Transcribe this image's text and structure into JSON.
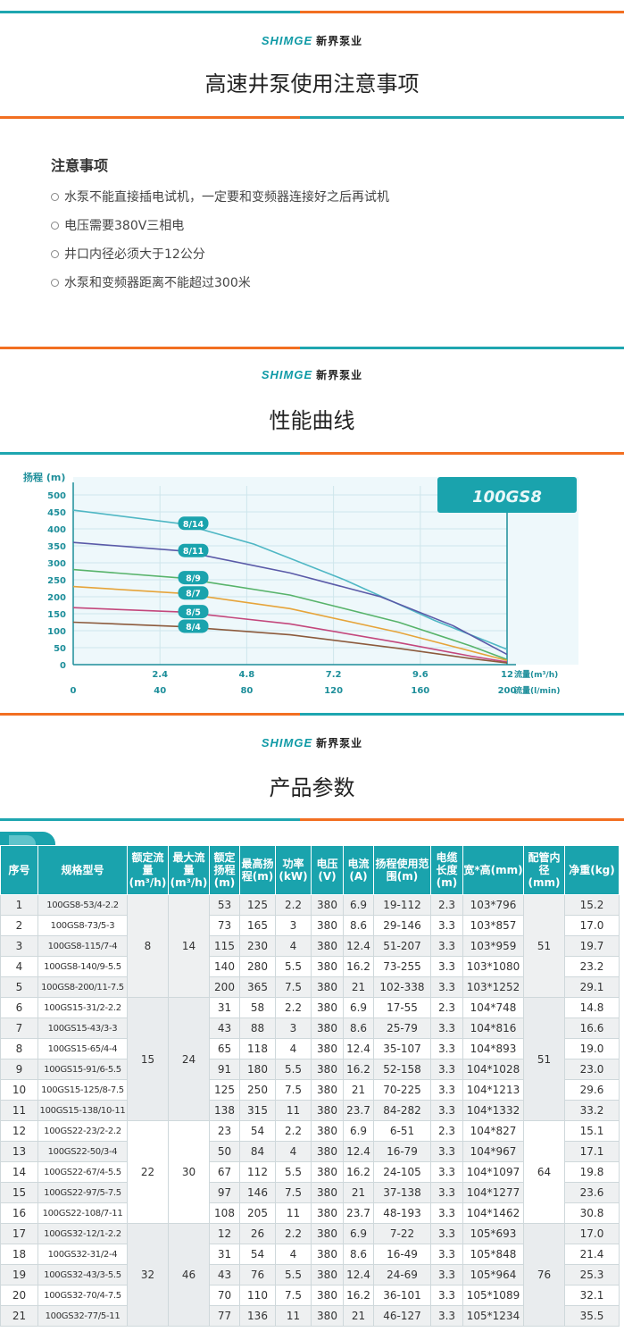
{
  "brand": {
    "en": "SHIMGE",
    "cn": "新界泵业"
  },
  "sections": [
    {
      "title": "高速井泵使用注意事项"
    },
    {
      "title": "性能曲线"
    },
    {
      "title": "产品参数"
    }
  ],
  "notes": {
    "heading": "注意事项",
    "items": [
      "水泵不能直接插电试机，一定要和变频器连接好之后再试机",
      "电压需要380V三相电",
      "井口内径必须大于12公分",
      "水泵和变频器距离不能超过300米"
    ]
  },
  "chart_data": {
    "type": "line",
    "title": "100GS8",
    "ylabel": "扬程 (m)",
    "xlabel": "流量(m³/h)",
    "xlabel2": "流量(l/min)",
    "ylim": [
      0,
      500
    ],
    "yticks": [
      0,
      50,
      100,
      150,
      200,
      250,
      300,
      350,
      400,
      450,
      500
    ],
    "xlim": [
      0,
      12
    ],
    "xticks": [
      "2.4",
      "4.8",
      "7.2",
      "9.6",
      "12"
    ],
    "xticks2": [
      "0",
      "40",
      "80",
      "120",
      "160",
      "200"
    ],
    "grid": true,
    "series": [
      {
        "name": "8/14",
        "color": "#4fb7c4",
        "points": [
          [
            0,
            455
          ],
          [
            3,
            415
          ],
          [
            5,
            355
          ],
          [
            7.5,
            250
          ],
          [
            10,
            130
          ],
          [
            12,
            45
          ]
        ]
      },
      {
        "name": "8/11",
        "color": "#5a5aa8",
        "points": [
          [
            0,
            360
          ],
          [
            3,
            335
          ],
          [
            6,
            270
          ],
          [
            8.5,
            200
          ],
          [
            10.5,
            115
          ],
          [
            12,
            30
          ]
        ]
      },
      {
        "name": "8/9",
        "color": "#57b36a",
        "points": [
          [
            0,
            280
          ],
          [
            3,
            255
          ],
          [
            6,
            205
          ],
          [
            9,
            125
          ],
          [
            11,
            55
          ],
          [
            12,
            15
          ]
        ]
      },
      {
        "name": "8/7",
        "color": "#e6a43a",
        "points": [
          [
            0,
            230
          ],
          [
            3,
            210
          ],
          [
            6,
            165
          ],
          [
            9,
            95
          ],
          [
            11,
            40
          ],
          [
            12,
            12
          ]
        ]
      },
      {
        "name": "8/5",
        "color": "#c3477c",
        "points": [
          [
            0,
            168
          ],
          [
            3,
            155
          ],
          [
            6,
            120
          ],
          [
            9,
            65
          ],
          [
            11,
            25
          ],
          [
            12,
            8
          ]
        ]
      },
      {
        "name": "8/4",
        "color": "#8c5a3c",
        "points": [
          [
            0,
            125
          ],
          [
            3,
            112
          ],
          [
            6,
            88
          ],
          [
            9,
            48
          ],
          [
            11,
            18
          ],
          [
            12,
            5
          ]
        ]
      }
    ]
  },
  "table": {
    "headers": [
      "序号",
      "规格型号",
      "额定流量(m³/h)",
      "最大流量(m³/h)",
      "额定扬程(m)",
      "最高扬程(m)",
      "功率(kW)",
      "电压(V)",
      "电流(A)",
      "扬程使用范围(m)",
      "电缆长度(m)",
      "宽*高(mm)",
      "配管内径(mm)",
      "净重(kg)"
    ],
    "groups": [
      {
        "rated_flow": "8",
        "max_flow": "14",
        "pipe": "51",
        "rows": [
          [
            "1",
            "100GS8-53/4-2.2",
            "53",
            "125",
            "2.2",
            "380",
            "6.9",
            "19-112",
            "2.3",
            "103*796",
            "15.2"
          ],
          [
            "2",
            "100GS8-73/5-3",
            "73",
            "165",
            "3",
            "380",
            "8.6",
            "29-146",
            "3.3",
            "103*857",
            "17.0"
          ],
          [
            "3",
            "100GS8-115/7-4",
            "115",
            "230",
            "4",
            "380",
            "12.4",
            "51-207",
            "3.3",
            "103*959",
            "19.7"
          ],
          [
            "4",
            "100GS8-140/9-5.5",
            "140",
            "280",
            "5.5",
            "380",
            "16.2",
            "73-255",
            "3.3",
            "103*1080",
            "23.2"
          ],
          [
            "5",
            "100GS8-200/11-7.5",
            "200",
            "365",
            "7.5",
            "380",
            "21",
            "102-338",
            "3.3",
            "103*1252",
            "29.1"
          ]
        ]
      },
      {
        "rated_flow": "15",
        "max_flow": "24",
        "pipe": "51",
        "rows": [
          [
            "6",
            "100GS15-31/2-2.2",
            "31",
            "58",
            "2.2",
            "380",
            "6.9",
            "17-55",
            "2.3",
            "104*748",
            "14.8"
          ],
          [
            "7",
            "100GS15-43/3-3",
            "43",
            "88",
            "3",
            "380",
            "8.6",
            "25-79",
            "3.3",
            "104*816",
            "16.6"
          ],
          [
            "8",
            "100GS15-65/4-4",
            "65",
            "118",
            "4",
            "380",
            "12.4",
            "35-107",
            "3.3",
            "104*893",
            "19.0"
          ],
          [
            "9",
            "100GS15-91/6-5.5",
            "91",
            "180",
            "5.5",
            "380",
            "16.2",
            "52-158",
            "3.3",
            "104*1028",
            "23.0"
          ],
          [
            "10",
            "100GS15-125/8-7.5",
            "125",
            "250",
            "7.5",
            "380",
            "21",
            "70-225",
            "3.3",
            "104*1213",
            "29.6"
          ],
          [
            "11",
            "100GS15-138/10-11",
            "138",
            "315",
            "11",
            "380",
            "23.7",
            "84-282",
            "3.3",
            "104*1332",
            "33.2"
          ]
        ]
      },
      {
        "rated_flow": "22",
        "max_flow": "30",
        "pipe": "64",
        "rows": [
          [
            "12",
            "100GS22-23/2-2.2",
            "23",
            "54",
            "2.2",
            "380",
            "6.9",
            "6-51",
            "2.3",
            "104*827",
            "15.1"
          ],
          [
            "13",
            "100GS22-50/3-4",
            "50",
            "84",
            "4",
            "380",
            "12.4",
            "16-79",
            "3.3",
            "104*967",
            "17.1"
          ],
          [
            "14",
            "100GS22-67/4-5.5",
            "67",
            "112",
            "5.5",
            "380",
            "16.2",
            "24-105",
            "3.3",
            "104*1097",
            "19.8"
          ],
          [
            "15",
            "100GS22-97/5-7.5",
            "97",
            "146",
            "7.5",
            "380",
            "21",
            "37-138",
            "3.3",
            "104*1277",
            "23.6"
          ],
          [
            "16",
            "100GS22-108/7-11",
            "108",
            "205",
            "11",
            "380",
            "23.7",
            "48-193",
            "3.3",
            "104*1462",
            "30.8"
          ]
        ]
      },
      {
        "rated_flow": "32",
        "max_flow": "46",
        "pipe": "76",
        "rows": [
          [
            "17",
            "100GS32-12/1-2.2",
            "12",
            "26",
            "2.2",
            "380",
            "6.9",
            "7-22",
            "3.3",
            "105*693",
            "17.0"
          ],
          [
            "18",
            "100GS32-31/2-4",
            "31",
            "54",
            "4",
            "380",
            "8.6",
            "16-49",
            "3.3",
            "105*848",
            "21.4"
          ],
          [
            "19",
            "100GS32-43/3-5.5",
            "43",
            "76",
            "5.5",
            "380",
            "12.4",
            "24-69",
            "3.3",
            "105*964",
            "25.3"
          ],
          [
            "20",
            "100GS32-70/4-7.5",
            "70",
            "110",
            "7.5",
            "380",
            "16.2",
            "36-101",
            "3.3",
            "105*1089",
            "32.1"
          ],
          [
            "21",
            "100GS32-77/5-11",
            "77",
            "136",
            "11",
            "380",
            "21",
            "46-127",
            "3.3",
            "105*1234",
            "35.5"
          ]
        ]
      }
    ]
  }
}
